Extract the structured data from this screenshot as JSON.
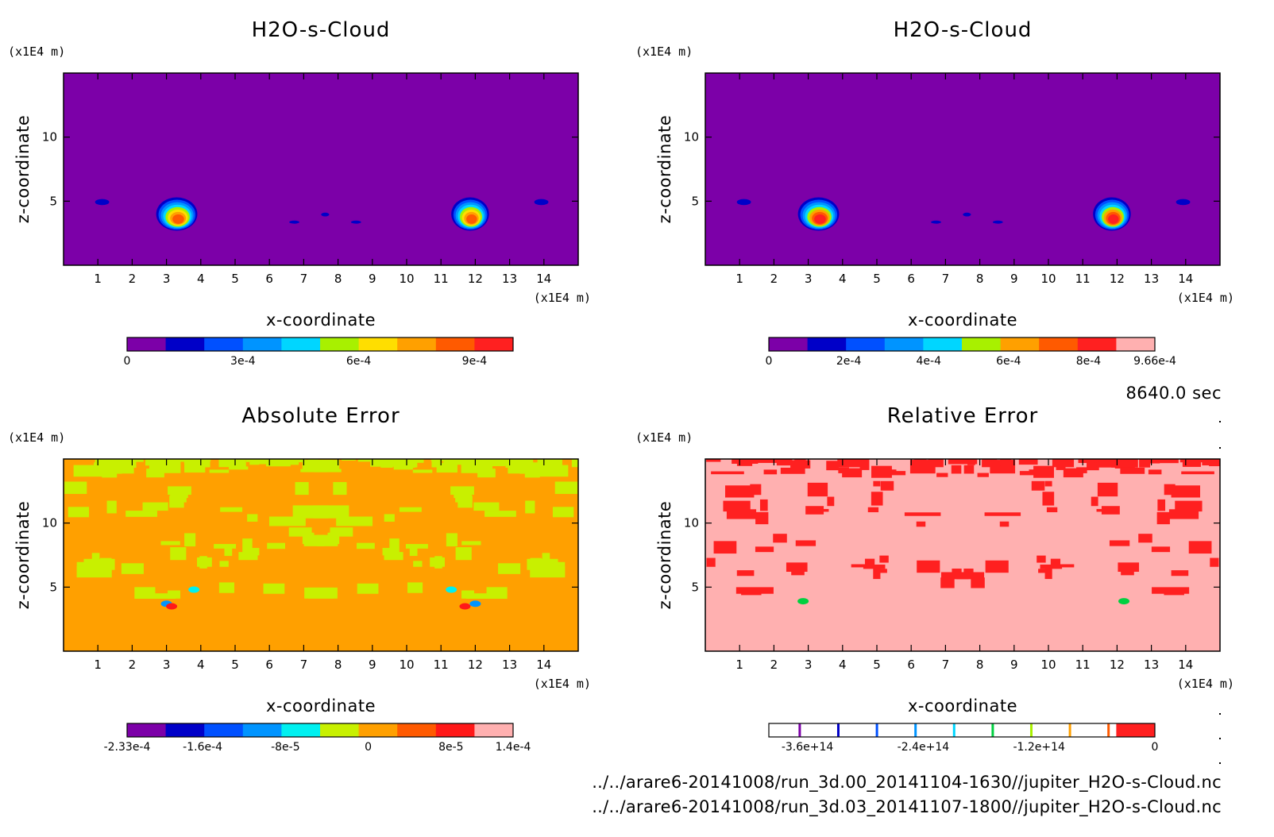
{
  "time_label": "8640.0 sec",
  "file_paths": [
    "../../arare6-20141008/run_3d.00_20141104-1630//jupiter_H2O-s-Cloud.nc",
    "../../arare6-20141008/run_3d.03_20141107-1800//jupiter_H2O-s-Cloud.nc"
  ],
  "chart_data": [
    {
      "type": "heatmap",
      "title": "H2O-s-Cloud",
      "xlabel": "x-coordinate",
      "ylabel": "z-coordinate",
      "x_unit": "(x1E4 m)",
      "y_unit": "(x1E4 m)",
      "xlim": [
        0,
        15
      ],
      "ylim": [
        0,
        15
      ],
      "x_ticks": [
        1,
        2,
        3,
        4,
        5,
        6,
        7,
        8,
        9,
        10,
        11,
        12,
        13,
        14
      ],
      "y_ticks": [
        5,
        10
      ],
      "background": "#7c00a8",
      "blobs": [
        {
          "x": 3.3,
          "z": 4.0,
          "rx": 0.6,
          "rz": 1.3,
          "peak": 0.0009
        },
        {
          "x": 11.85,
          "z": 4.0,
          "rx": 0.55,
          "rz": 1.3,
          "peak": 0.0009
        },
        {
          "x": 1.1,
          "z": 5.0,
          "rx": 0.35,
          "rz": 0.4,
          "peak": 0.0002
        },
        {
          "x": 13.9,
          "z": 5.0,
          "rx": 0.35,
          "rz": 0.4,
          "peak": 0.0002
        },
        {
          "x": 6.7,
          "z": 3.4,
          "rx": 0.25,
          "rz": 0.2,
          "peak": 0.0002
        },
        {
          "x": 7.6,
          "z": 4.0,
          "rx": 0.2,
          "rz": 0.25,
          "peak": 0.0002
        },
        {
          "x": 8.5,
          "z": 3.4,
          "rx": 0.25,
          "rz": 0.2,
          "peak": 0.0002
        }
      ],
      "colorbar": {
        "colors": [
          "#7c00a8",
          "#0000c8",
          "#0050ff",
          "#0094ff",
          "#00d6ff",
          "#a8f000",
          "#ffde00",
          "#ffa000",
          "#ff5a00",
          "#ff2020"
        ],
        "tick_labels": [
          "0",
          "3e-4",
          "6e-4",
          "9e-4"
        ],
        "tick_values": [
          0,
          0.0003,
          0.0006,
          0.0009
        ],
        "range": [
          0,
          0.001
        ]
      }
    },
    {
      "type": "heatmap",
      "title": "H2O-s-Cloud",
      "xlabel": "x-coordinate",
      "ylabel": "z-coordinate",
      "x_unit": "(x1E4 m)",
      "y_unit": "(x1E4 m)",
      "xlim": [
        0,
        15
      ],
      "ylim": [
        0,
        15
      ],
      "x_ticks": [
        1,
        2,
        3,
        4,
        5,
        6,
        7,
        8,
        9,
        10,
        11,
        12,
        13,
        14
      ],
      "y_ticks": [
        5,
        10
      ],
      "background": "#7c00a8",
      "blobs": [
        {
          "x": 3.3,
          "z": 4.0,
          "rx": 0.6,
          "rz": 1.3,
          "peak": 0.000966
        },
        {
          "x": 11.85,
          "z": 4.0,
          "rx": 0.55,
          "rz": 1.3,
          "peak": 0.000966
        },
        {
          "x": 1.1,
          "z": 5.0,
          "rx": 0.35,
          "rz": 0.4,
          "peak": 0.0002
        },
        {
          "x": 13.9,
          "z": 5.0,
          "rx": 0.35,
          "rz": 0.4,
          "peak": 0.0002
        },
        {
          "x": 6.7,
          "z": 3.4,
          "rx": 0.25,
          "rz": 0.2,
          "peak": 0.0002
        },
        {
          "x": 7.6,
          "z": 4.0,
          "rx": 0.2,
          "rz": 0.25,
          "peak": 0.0002
        },
        {
          "x": 8.5,
          "z": 3.4,
          "rx": 0.25,
          "rz": 0.2,
          "peak": 0.0002
        }
      ],
      "colorbar": {
        "colors": [
          "#7c00a8",
          "#0000c8",
          "#0050ff",
          "#0094ff",
          "#00d6ff",
          "#a8f000",
          "#ffa000",
          "#ff5a00",
          "#ff2020",
          "#ffb0b0"
        ],
        "tick_labels": [
          "0",
          "2e-4",
          "4e-4",
          "6e-4",
          "8e-4",
          "9.66e-4"
        ],
        "tick_values": [
          0,
          0.0002,
          0.0004,
          0.0006,
          0.0008,
          0.000966
        ],
        "range": [
          0,
          0.000966
        ]
      }
    },
    {
      "type": "heatmap",
      "title": "Absolute Error",
      "xlabel": "x-coordinate",
      "ylabel": "z-coordinate",
      "x_unit": "(x1E4 m)",
      "y_unit": "(x1E4 m)",
      "xlim": [
        0,
        15
      ],
      "ylim": [
        0,
        15
      ],
      "x_ticks": [
        1,
        2,
        3,
        4,
        5,
        6,
        7,
        8,
        9,
        10,
        11,
        12,
        13,
        14
      ],
      "y_ticks": [
        5,
        10
      ],
      "background": "#ffa000",
      "patch_color": "#c8f000",
      "colorbar": {
        "colors": [
          "#7c00a8",
          "#0000c8",
          "#0050ff",
          "#0094ff",
          "#00f0f0",
          "#c8f000",
          "#ffa000",
          "#ff5a00",
          "#ff1818",
          "#ffb0b0"
        ],
        "tick_labels": [
          "-2.33e-4",
          "-1.6e-4",
          "-8e-5",
          "0",
          "8e-5",
          "1.4e-4"
        ],
        "tick_values": [
          -0.000233,
          -0.00016,
          -8e-05,
          0,
          8e-05,
          0.00014
        ],
        "range": [
          -0.000233,
          0.00014
        ]
      }
    },
    {
      "type": "heatmap",
      "title": "Relative Error",
      "xlabel": "x-coordinate",
      "ylabel": "z-coordinate",
      "x_unit": "(x1E4 m)",
      "y_unit": "(x1E4 m)",
      "xlim": [
        0,
        15
      ],
      "ylim": [
        0,
        15
      ],
      "x_ticks": [
        1,
        2,
        3,
        4,
        5,
        6,
        7,
        8,
        9,
        10,
        11,
        12,
        13,
        14
      ],
      "y_ticks": [
        5,
        10
      ],
      "background": "#ffb0b0",
      "patch_color": "#ff2020",
      "colorbar": {
        "colors": [
          "#7c00a8",
          "#0000c8",
          "#0050ff",
          "#0094ff",
          "#00d6ff",
          "#00d040",
          "#a8f000",
          "#ffa000",
          "#ff5a00",
          "#ff2020"
        ],
        "tick_labels": [
          "-3.6e+14",
          "-2.4e+14",
          "-1.2e+14",
          "0"
        ],
        "tick_values": [
          -360000000000000.0,
          -240000000000000.0,
          -120000000000000.0,
          0
        ],
        "range": [
          -400000000000000.0,
          0
        ]
      }
    }
  ]
}
